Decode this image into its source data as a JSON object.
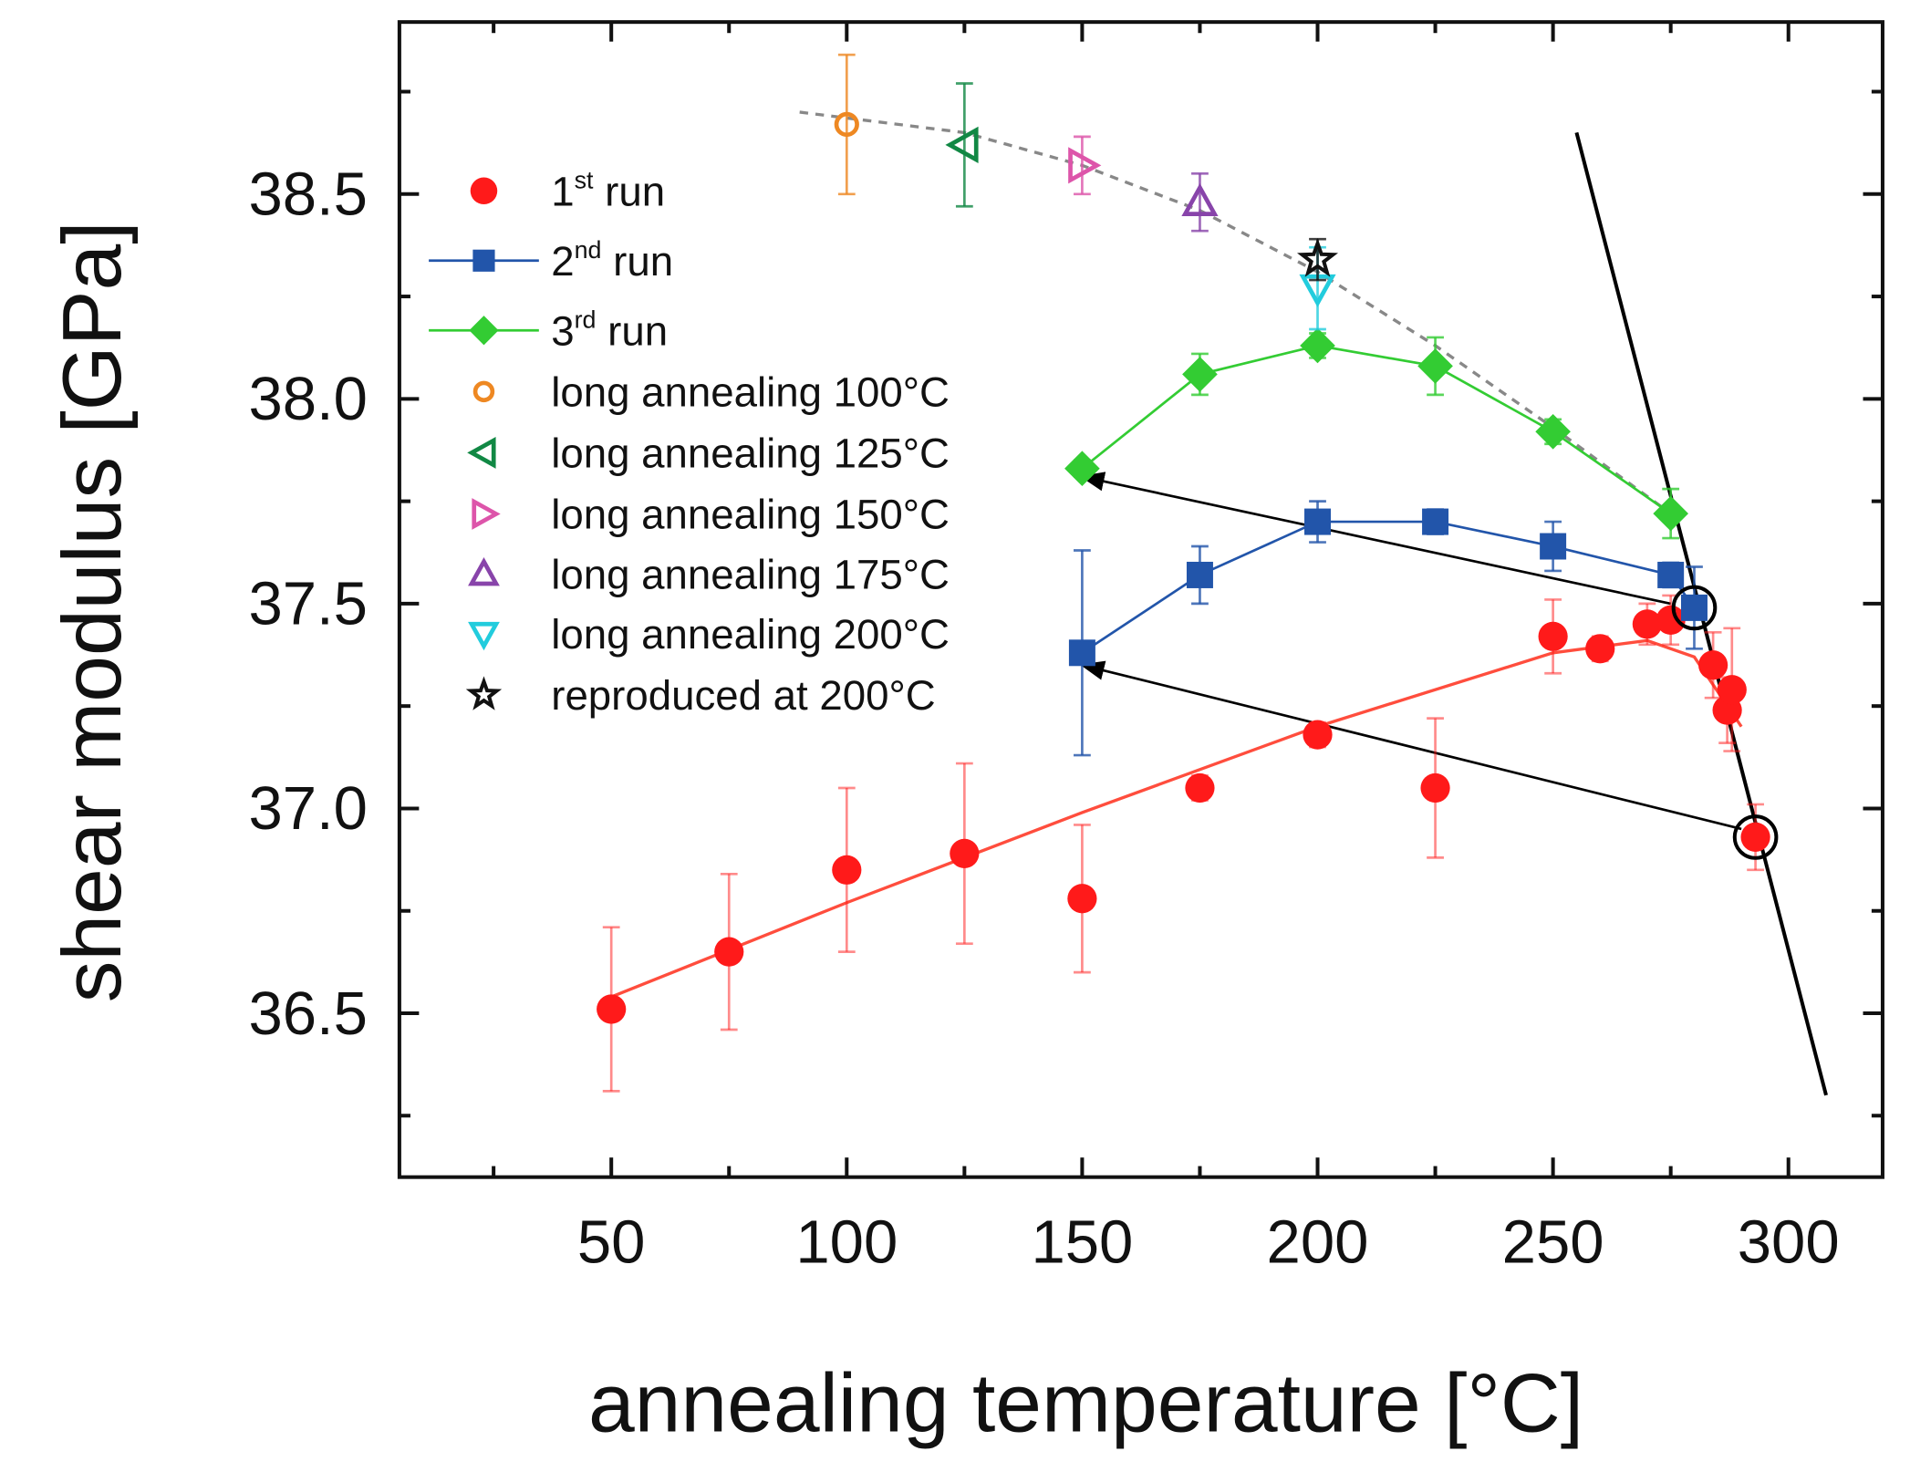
{
  "chart_data": {
    "type": "scatter",
    "title": "",
    "xlabel": "annealing temperature [°C]",
    "ylabel": "shear modulus [GPa]",
    "xlim": [
      5,
      320
    ],
    "ylim": [
      36.1,
      38.92
    ],
    "xticks": [
      50,
      100,
      150,
      200,
      250,
      300
    ],
    "yticks": [
      36.5,
      37.0,
      37.5,
      38.0,
      38.5
    ],
    "xtick_labels": [
      "50",
      "100",
      "150",
      "200",
      "250",
      "300"
    ],
    "ytick_labels": [
      "36.5",
      "37.0",
      "37.5",
      "38.0",
      "38.5"
    ],
    "grid": false,
    "legend_position": "top-left",
    "series": [
      {
        "name": "1st run",
        "base": "1",
        "sup": "st",
        "rest": " run",
        "marker": "circle",
        "color": "#ff1a1a",
        "line": false,
        "x": [
          50,
          75,
          100,
          125,
          150,
          175,
          200,
          225,
          250,
          260,
          270,
          275,
          284,
          287,
          288,
          293
        ],
        "y": [
          36.51,
          36.65,
          36.85,
          36.89,
          36.78,
          37.05,
          37.18,
          37.05,
          37.42,
          37.39,
          37.45,
          37.46,
          37.35,
          37.24,
          37.29,
          36.93
        ],
        "err": [
          0.2,
          0.19,
          0.2,
          0.22,
          0.18,
          0.03,
          0.03,
          0.17,
          0.09,
          0.03,
          0.05,
          0.06,
          0.08,
          0.08,
          0.15,
          0.08
        ]
      },
      {
        "name": "2nd run",
        "base": "2",
        "sup": "nd",
        "rest": " run",
        "marker": "square",
        "color": "#2255aa",
        "line": true,
        "x": [
          150,
          175,
          200,
          225,
          250,
          275,
          280
        ],
        "y": [
          37.38,
          37.57,
          37.7,
          37.7,
          37.64,
          37.57,
          37.49
        ],
        "err": [
          0.25,
          0.07,
          0.05,
          0.03,
          0.06,
          0.03,
          0.1
        ]
      },
      {
        "name": "3rd run",
        "base": "3",
        "sup": "rd",
        "rest": " run",
        "marker": "diamond",
        "color": "#33cc33",
        "line": true,
        "x": [
          150,
          175,
          200,
          225,
          250,
          275
        ],
        "y": [
          37.83,
          38.06,
          38.13,
          38.08,
          37.92,
          37.72
        ],
        "err": [
          0.02,
          0.05,
          0.03,
          0.07,
          0.03,
          0.06
        ]
      },
      {
        "name": "long annealing 100°C",
        "marker": "circle-open",
        "color": "#ee8822",
        "x": [
          100
        ],
        "y": [
          38.67
        ],
        "err": [
          0.17
        ]
      },
      {
        "name": "long annealing 125°C",
        "marker": "tri-left",
        "color": "#118844",
        "x": [
          125
        ],
        "y": [
          38.62
        ],
        "err": [
          0.15
        ]
      },
      {
        "name": "long annealing 150°C",
        "marker": "tri-right",
        "color": "#dd55aa",
        "x": [
          150
        ],
        "y": [
          38.57
        ],
        "err": [
          0.07
        ]
      },
      {
        "name": "long annealing 175°C",
        "marker": "tri-up",
        "color": "#8844aa",
        "x": [
          175
        ],
        "y": [
          38.48
        ],
        "err": [
          0.07
        ]
      },
      {
        "name": "long annealing 200°C",
        "marker": "tri-down",
        "color": "#22ccdd",
        "x": [
          200
        ],
        "y": [
          38.27
        ],
        "err": [
          0.1
        ]
      },
      {
        "name": "reproduced at 200°C",
        "marker": "star",
        "color": "#111111",
        "x": [
          200
        ],
        "y": [
          38.34
        ],
        "err": [
          0.05
        ]
      }
    ],
    "fits": [
      {
        "name": "1st-run-fit",
        "color": "#ff4d3d",
        "dash": false,
        "x": [
          50,
          100,
          150,
          200,
          250,
          270,
          280,
          290
        ],
        "y": [
          36.54,
          36.77,
          36.99,
          37.2,
          37.38,
          37.41,
          37.37,
          37.2
        ]
      },
      {
        "name": "long-annealing-fit",
        "color": "#888888",
        "dash": true,
        "x": [
          90,
          125,
          150,
          175,
          200,
          225,
          250,
          275
        ],
        "y": [
          38.7,
          38.65,
          38.57,
          38.46,
          38.31,
          38.13,
          37.93,
          37.72
        ]
      }
    ],
    "annotations": {
      "steep_line": {
        "x": [
          255,
          308
        ],
        "y": [
          38.65,
          36.3
        ]
      },
      "arrows": [
        {
          "from": [
            275,
            37.5
          ],
          "to": [
            150,
            37.81
          ]
        },
        {
          "from": [
            290,
            36.95
          ],
          "to": [
            150,
            37.35
          ]
        }
      ],
      "circles": [
        {
          "x": 280,
          "y": 37.49
        },
        {
          "x": 293,
          "y": 36.93
        }
      ]
    }
  }
}
